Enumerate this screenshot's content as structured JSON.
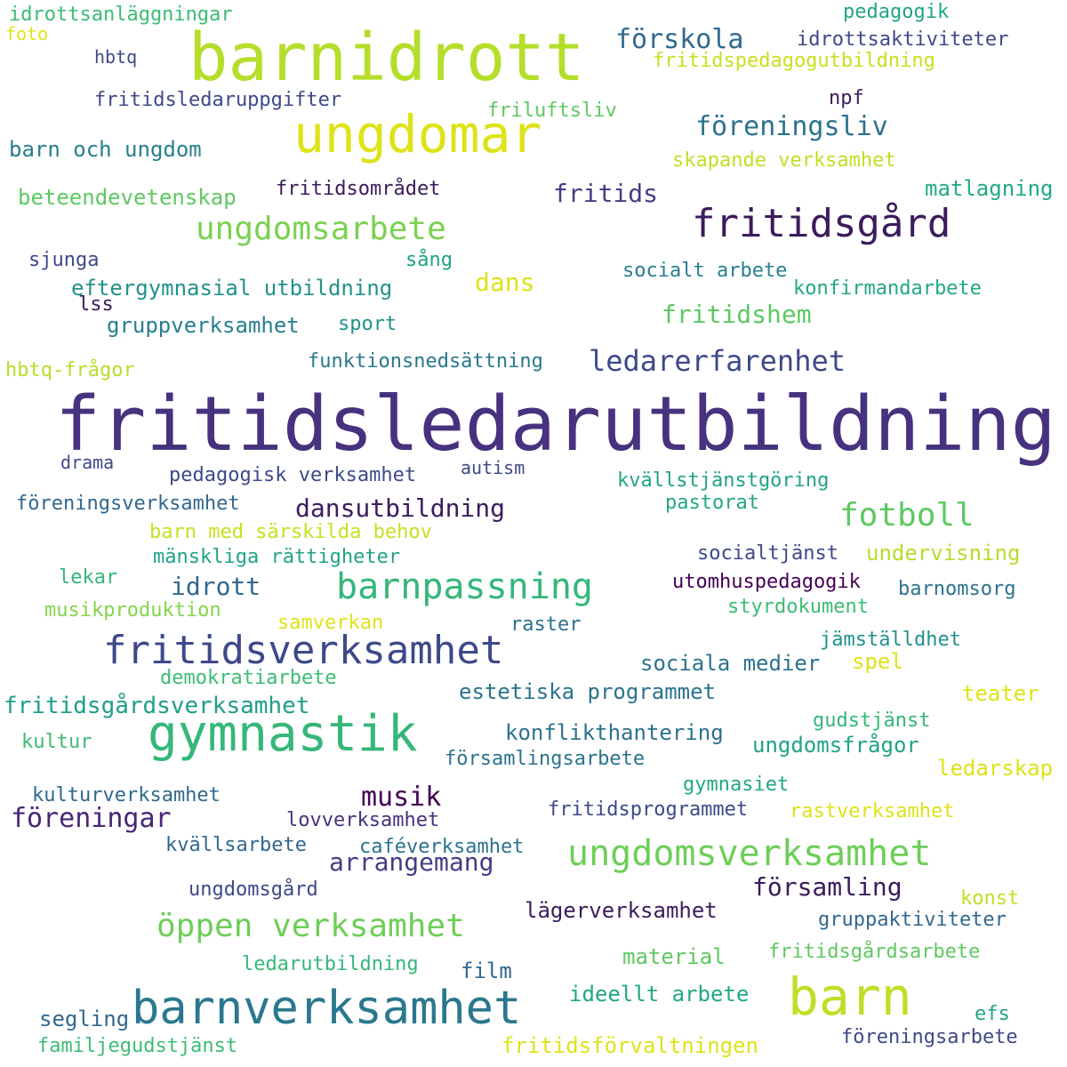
{
  "words": [
    {
      "text": "fritidsledarutbildning",
      "color": "#46327e"
    },
    {
      "text": "barnidrott",
      "color": "#b5de2b"
    },
    {
      "text": "ungdomar",
      "color": "#dde318"
    },
    {
      "text": "barnverksamhet",
      "color": "#2a788e"
    },
    {
      "text": "gymnastik",
      "color": "#35b779"
    },
    {
      "text": "barn",
      "color": "#bddf26"
    },
    {
      "text": "fritidsverksamhet",
      "color": "#3e4989"
    },
    {
      "text": "barnpassning",
      "color": "#35b779"
    },
    {
      "text": "ungdomsverksamhet",
      "color": "#6ece58"
    },
    {
      "text": "fritidsgård",
      "color": "#3b1c5b"
    },
    {
      "text": "ungdomsarbete",
      "color": "#7ad151"
    },
    {
      "text": "öppen verksamhet",
      "color": "#6ece58"
    },
    {
      "text": "fotboll",
      "color": "#5ec962"
    },
    {
      "text": "ledarerfarenhet",
      "color": "#3e4989"
    },
    {
      "text": "förskola",
      "color": "#31688e"
    },
    {
      "text": "föreningsliv",
      "color": "#2c728e"
    },
    {
      "text": "musik",
      "color": "#440154"
    },
    {
      "text": "föreningar",
      "color": "#482677"
    },
    {
      "text": "dansutbildning",
      "color": "#3b1c5b"
    },
    {
      "text": "arrangemang",
      "color": "#433e85"
    },
    {
      "text": "idrott",
      "color": "#31688e"
    },
    {
      "text": "fritidshem",
      "color": "#5ec962"
    },
    {
      "text": "fritids",
      "color": "#433e85"
    },
    {
      "text": "dans",
      "color": "#dde318"
    },
    {
      "text": "församling",
      "color": "#3b1c5b"
    },
    {
      "text": "estetiska programmet",
      "color": "#2c728e"
    },
    {
      "text": "ungdomsfrågor",
      "color": "#20a486"
    },
    {
      "text": "lägerverksamhet",
      "color": "#3b1c5b"
    },
    {
      "text": "idrottsanläggningar",
      "color": "#3dbc74"
    },
    {
      "text": "foto",
      "color": "#dde318"
    },
    {
      "text": "hbtq",
      "color": "#3e4989"
    },
    {
      "text": "fritidsledaruppgifter",
      "color": "#3e4989"
    },
    {
      "text": "barn och ungdom",
      "color": "#277f8e"
    },
    {
      "text": "beteendevetenskap",
      "color": "#5ec962"
    },
    {
      "text": "sjunga",
      "color": "#3e4989"
    },
    {
      "text": "eftergymnasial utbildning",
      "color": "#21918c"
    },
    {
      "text": "lss",
      "color": "#3b1c5b"
    },
    {
      "text": "gruppverksamhet",
      "color": "#277f8e"
    },
    {
      "text": "sport",
      "color": "#21918c"
    },
    {
      "text": "hbtq-frågor",
      "color": "#b5de2b"
    },
    {
      "text": "funktionsnedsättning",
      "color": "#2a788e"
    },
    {
      "text": "pedagogik",
      "color": "#20a486"
    },
    {
      "text": "idrottsaktiviteter",
      "color": "#3e4989"
    },
    {
      "text": "fritidspedagogutbildning",
      "color": "#c8e020"
    },
    {
      "text": "npf",
      "color": "#3b1c5b"
    },
    {
      "text": "friluftsliv",
      "color": "#5ec962"
    },
    {
      "text": "skapande verksamhet",
      "color": "#c2df23"
    },
    {
      "text": "fritidsområdet",
      "color": "#3b1c5b"
    },
    {
      "text": "matlagning",
      "color": "#22a884"
    },
    {
      "text": "sång",
      "color": "#20a486"
    },
    {
      "text": "socialt arbete",
      "color": "#277f8e"
    },
    {
      "text": "konfirmandarbete",
      "color": "#22a884"
    },
    {
      "text": "drama",
      "color": "#3e4989"
    },
    {
      "text": "pedagogisk verksamhet",
      "color": "#3e4989"
    },
    {
      "text": "autism",
      "color": "#3e4989"
    },
    {
      "text": "kvällstjänstgöring",
      "color": "#20a486"
    },
    {
      "text": "föreningsverksamhet",
      "color": "#31688e"
    },
    {
      "text": "pastorat",
      "color": "#22a884"
    },
    {
      "text": "barn med särskilda behov",
      "color": "#c8e020"
    },
    {
      "text": "mänskliga rättigheter",
      "color": "#20a486"
    },
    {
      "text": "socialtjänst",
      "color": "#3e4989"
    },
    {
      "text": "undervisning",
      "color": "#b5de2b"
    },
    {
      "text": "lekar",
      "color": "#35b779"
    },
    {
      "text": "utomhuspedagogik",
      "color": "#440154"
    },
    {
      "text": "barnomsorg",
      "color": "#2c728e"
    },
    {
      "text": "musikproduktion",
      "color": "#84d44b"
    },
    {
      "text": "samverkan",
      "color": "#dde318"
    },
    {
      "text": "raster",
      "color": "#2c728e"
    },
    {
      "text": "styrdokument",
      "color": "#3dbc74"
    },
    {
      "text": "jämställdhet",
      "color": "#21918c"
    },
    {
      "text": "sociala medier",
      "color": "#2c728e"
    },
    {
      "text": "spel",
      "color": "#dde318"
    },
    {
      "text": "demokratiarbete",
      "color": "#3dbc74"
    },
    {
      "text": "teater",
      "color": "#dde318"
    },
    {
      "text": "fritidsgårdsverksamhet",
      "color": "#1f9e89"
    },
    {
      "text": "gudstjänst",
      "color": "#35b779"
    },
    {
      "text": "kultur",
      "color": "#3dbc74"
    },
    {
      "text": "konflikthantering",
      "color": "#2c728e"
    },
    {
      "text": "församlingsarbete",
      "color": "#2c728e"
    },
    {
      "text": "ledarskap",
      "color": "#dde318"
    },
    {
      "text": "kulturverksamhet",
      "color": "#31688e"
    },
    {
      "text": "gymnasiet",
      "color": "#22a884"
    },
    {
      "text": "lovverksamhet",
      "color": "#46327e"
    },
    {
      "text": "fritidsprogrammet",
      "color": "#3e4989"
    },
    {
      "text": "rastverksamhet",
      "color": "#dde318"
    },
    {
      "text": "kvällsarbete",
      "color": "#31688e"
    },
    {
      "text": "caféverksamhet",
      "color": "#2c728e"
    },
    {
      "text": "ungdomsgård",
      "color": "#3e4989"
    },
    {
      "text": "konst",
      "color": "#c2df23"
    },
    {
      "text": "gruppaktiviteter",
      "color": "#31688e"
    },
    {
      "text": "material",
      "color": "#5ec962"
    },
    {
      "text": "fritidsgårdsarbete",
      "color": "#5ec962"
    },
    {
      "text": "ledarutbildning",
      "color": "#35b779"
    },
    {
      "text": "film",
      "color": "#31688e"
    },
    {
      "text": "ideellt arbete",
      "color": "#22a884"
    },
    {
      "text": "segling",
      "color": "#31688e"
    },
    {
      "text": "efs",
      "color": "#20a486"
    },
    {
      "text": "familjegudstjänst",
      "color": "#3dbc74"
    },
    {
      "text": "fritidsförvaltningen",
      "color": "#dde318"
    },
    {
      "text": "föreningsarbete",
      "color": "#3e4989"
    }
  ]
}
